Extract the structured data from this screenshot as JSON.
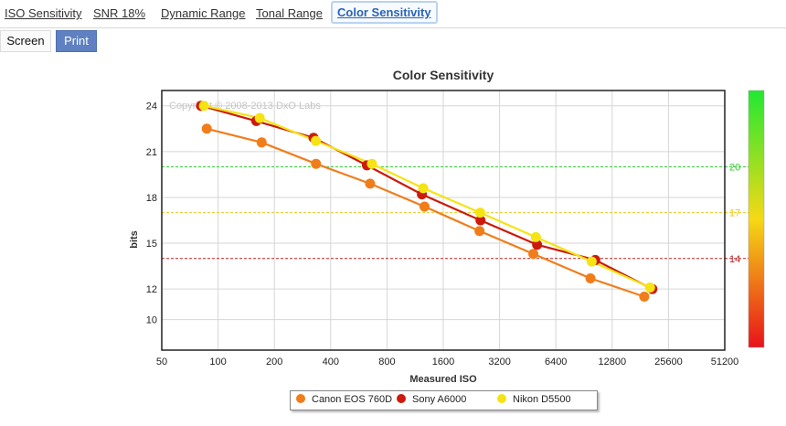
{
  "tabs": [
    {
      "label": "ISO Sensitivity",
      "active": false
    },
    {
      "label": "SNR 18%",
      "active": false
    },
    {
      "label": "Dynamic Range",
      "active": false
    },
    {
      "label": "Tonal Range",
      "active": false
    },
    {
      "label": "Color Sensitivity",
      "active": true
    }
  ],
  "modes": {
    "screen": "Screen",
    "print": "Print",
    "selected": "print"
  },
  "colors": {
    "active_tab": "#2a62b8",
    "print_button": "#5f80c1"
  },
  "chart_data": {
    "type": "line",
    "title": "Color Sensitivity",
    "xlabel": "Measured ISO",
    "ylabel": "bits",
    "watermark": "Copyright © 2008-2013 DxO Labs",
    "x_scale": "log2",
    "xlim": [
      50,
      51200
    ],
    "ylim": [
      8,
      25
    ],
    "x_ticks": [
      50,
      100,
      200,
      400,
      800,
      1600,
      3200,
      6400,
      12800,
      25600,
      51200
    ],
    "x_tick_labels": [
      "50",
      "100",
      "200",
      "400",
      "800",
      "1600",
      "3200",
      "6400",
      "12800",
      "25600",
      "51200"
    ],
    "y_ticks": [
      10,
      12,
      15,
      18,
      21,
      24
    ],
    "y_tick_labels": [
      "10",
      "12",
      "15",
      "18",
      "21",
      "24"
    ],
    "grid": true,
    "legend_position": "bottom",
    "series": [
      {
        "name": "Canon EOS 760D",
        "color": "#f07d1a",
        "points": [
          [
            87,
            22.5
          ],
          [
            171,
            21.6
          ],
          [
            334,
            20.2
          ],
          [
            650,
            18.9
          ],
          [
            1270,
            17.4
          ],
          [
            2500,
            15.8
          ],
          [
            4850,
            14.3
          ],
          [
            9800,
            12.7
          ],
          [
            19000,
            11.5
          ]
        ]
      },
      {
        "name": "Sony A6000",
        "color": "#cc1a0c",
        "points": [
          [
            81,
            24.0
          ],
          [
            160,
            23.0
          ],
          [
            324,
            21.9
          ],
          [
            625,
            20.1
          ],
          [
            1230,
            18.2
          ],
          [
            2530,
            16.5
          ],
          [
            5080,
            14.9
          ],
          [
            10400,
            13.9
          ],
          [
            21000,
            12.0
          ]
        ]
      },
      {
        "name": "Nikon D5500",
        "color": "#f5e313",
        "points": [
          [
            84,
            24.0
          ],
          [
            167,
            23.2
          ],
          [
            333,
            21.7
          ],
          [
            665,
            20.2
          ],
          [
            1250,
            18.6
          ],
          [
            2520,
            17.0
          ],
          [
            5000,
            15.4
          ],
          [
            9950,
            13.8
          ],
          [
            20400,
            12.1
          ]
        ]
      }
    ],
    "reference_lines": [
      {
        "value": 20,
        "label": "20",
        "color": "#33cc33"
      },
      {
        "value": 17,
        "label": "17",
        "color": "#e8c81e"
      },
      {
        "value": 14,
        "label": "14",
        "color": "#bb2020"
      }
    ],
    "color_scale": {
      "top": "#22e832",
      "middle": "#f5d916",
      "bottom": "#e8131a"
    }
  }
}
